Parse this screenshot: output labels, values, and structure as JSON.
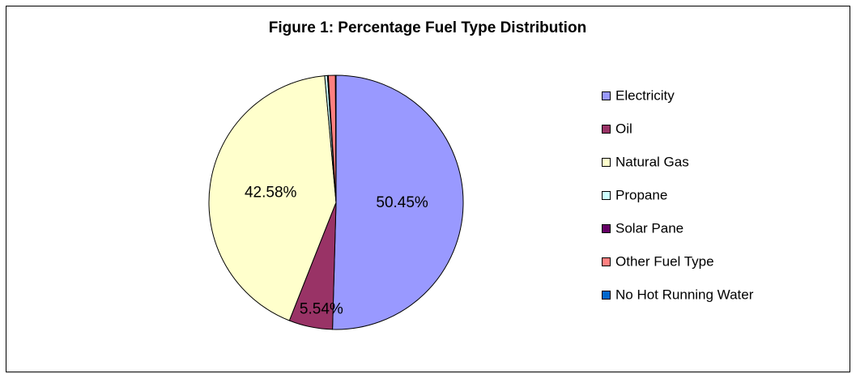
{
  "chart_data": {
    "type": "pie",
    "title": "Figure 1: Percentage Fuel Type Distribution",
    "categories": [
      "Electricity",
      "Oil",
      "Natural Gas",
      "Propane",
      "Solar Pane",
      "Other Fuel Type",
      "No Hot Running Water"
    ],
    "values": [
      50.45,
      5.54,
      42.58,
      0.35,
      0.1,
      0.9,
      0.08
    ],
    "value_labels": [
      "50.45%",
      "5.54%",
      "42.58%",
      null,
      null,
      null,
      null
    ],
    "colors": [
      "#9999ff",
      "#993366",
      "#ffffcc",
      "#ccffff",
      "#660066",
      "#ff8080",
      "#0066cc"
    ],
    "legend": "right"
  }
}
